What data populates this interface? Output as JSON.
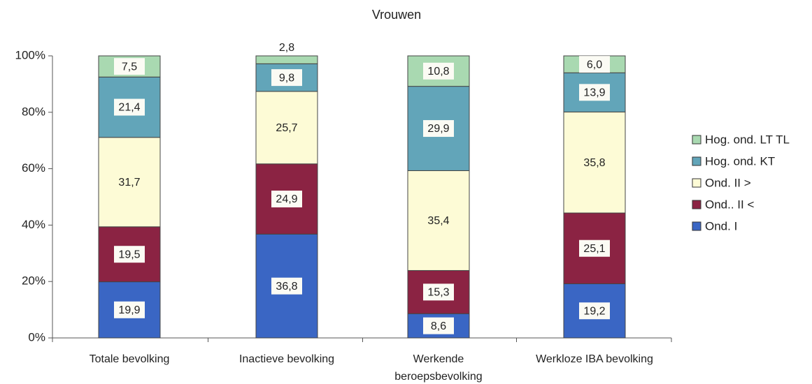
{
  "chart_data": {
    "type": "stacked_bar",
    "title": "Vrouwen",
    "categories": [
      "Totale bevolking",
      "Inactieve bevolking",
      "Werkende\nberoepsbevolking",
      "Werkloze IBA bevolking"
    ],
    "series": [
      {
        "name": "Ond.  I",
        "color": "#3a66c4",
        "values": [
          19.9,
          36.8,
          8.6,
          19.2
        ],
        "value_labels": [
          "19,9",
          "36,8",
          "8,6",
          "19,2"
        ]
      },
      {
        "name": "Ond.. II <",
        "color": "#8b2343",
        "values": [
          19.5,
          24.9,
          15.3,
          25.1
        ],
        "value_labels": [
          "19,5",
          "24,9",
          "15,3",
          "25,1"
        ]
      },
      {
        "name": "Ond. II >",
        "color": "#fdfbd6",
        "values": [
          31.7,
          25.7,
          35.4,
          35.8
        ],
        "value_labels": [
          "31,7",
          "25,7",
          "35,4",
          "35,8"
        ]
      },
      {
        "name": "Hog. ond. KT",
        "color": "#62a5b9",
        "values": [
          21.4,
          9.8,
          29.9,
          13.9
        ],
        "value_labels": [
          "21,4",
          "9,8",
          "29,9",
          "13,9"
        ]
      },
      {
        "name": "Hog. ond. LT TL",
        "color": "#a9d9b1",
        "values": [
          7.5,
          2.8,
          10.8,
          6.0
        ],
        "value_labels": [
          "7,5",
          "2,8",
          "10,8",
          "6,0"
        ]
      }
    ],
    "ylim": [
      0,
      100
    ],
    "yticks": [
      {
        "value": 0,
        "label": "0%"
      },
      {
        "value": 20,
        "label": "20%"
      },
      {
        "value": 40,
        "label": "40%"
      },
      {
        "value": 60,
        "label": "60%"
      },
      {
        "value": 80,
        "label": "80%"
      },
      {
        "value": 100,
        "label": "100%"
      }
    ],
    "grid": false,
    "legend": "right"
  }
}
